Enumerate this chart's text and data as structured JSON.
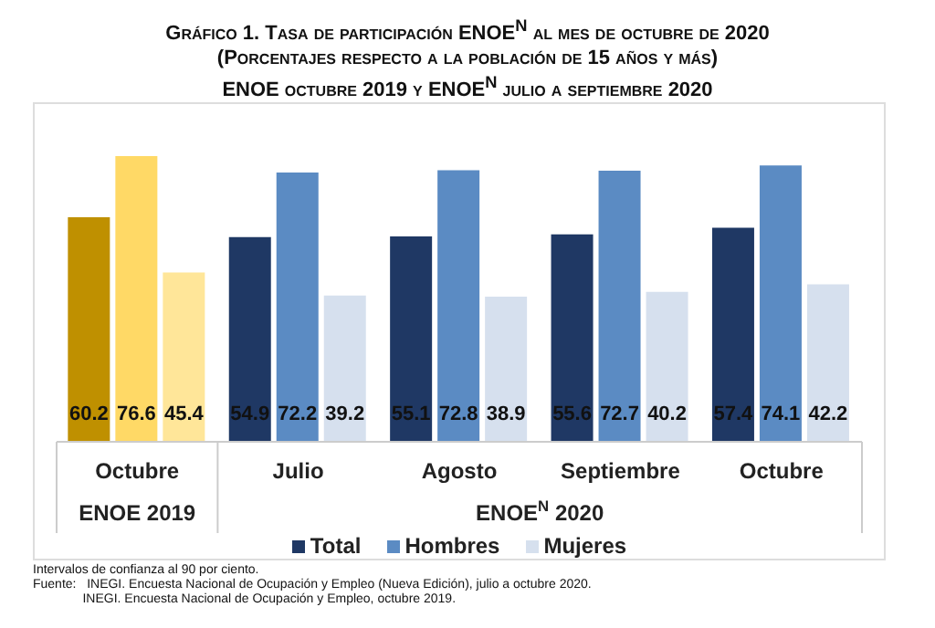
{
  "chart_data": {
    "type": "bar",
    "title": "Gráfico 1. Tasa de participación ENOE$^{N}$ al mes de octubre de 2020",
    "subtitle": "(Porcentajes respecto a la población de 15 años y más)\nENOE octubre 2019 y ENOE$^{N}$ julio a septiembre 2020",
    "categories": [
      "Octubre",
      "Julio",
      "Agosto",
      "Septiembre",
      "Octubre"
    ],
    "series": [
      {
        "name": "Total",
        "color": "#1f3864",
        "colors": [
          "#bf9000",
          "#1f3864",
          "#1f3864",
          "#1f3864",
          "#1f3864"
        ],
        "values": [
          60.2,
          54.9,
          55.1,
          55.6,
          57.4
        ]
      },
      {
        "name": "Hombres",
        "color": "#5b8bc3",
        "colors": [
          "#ffd966",
          "#5b8bc3",
          "#5b8bc3",
          "#5b8bc3",
          "#5b8bc3"
        ],
        "values": [
          76.6,
          72.2,
          72.8,
          72.7,
          74.1
        ]
      },
      {
        "name": "Mujeres",
        "color": "#d6e0ee",
        "colors": [
          "#ffe699",
          "#d6e0ee",
          "#d6e0ee",
          "#d6e0ee",
          "#d6e0ee"
        ],
        "values": [
          45.4,
          39.2,
          38.9,
          40.2,
          42.2
        ]
      }
    ],
    "data_labels": true,
    "legend": "bottom",
    "annotations": [
      "ENOE 2019",
      "ENOE$^{N}$ 2020",
      "Intervalos de confianza al 90 por ciento.",
      "Fuente:   INEGI. Encuesta Nacional de Ocupación y Empleo (Nueva Edición), julio a octubre 2020.",
      "              INEGI. Encuesta Nacional de Ocupación y Empleo, octubre 2019."
    ]
  }
}
